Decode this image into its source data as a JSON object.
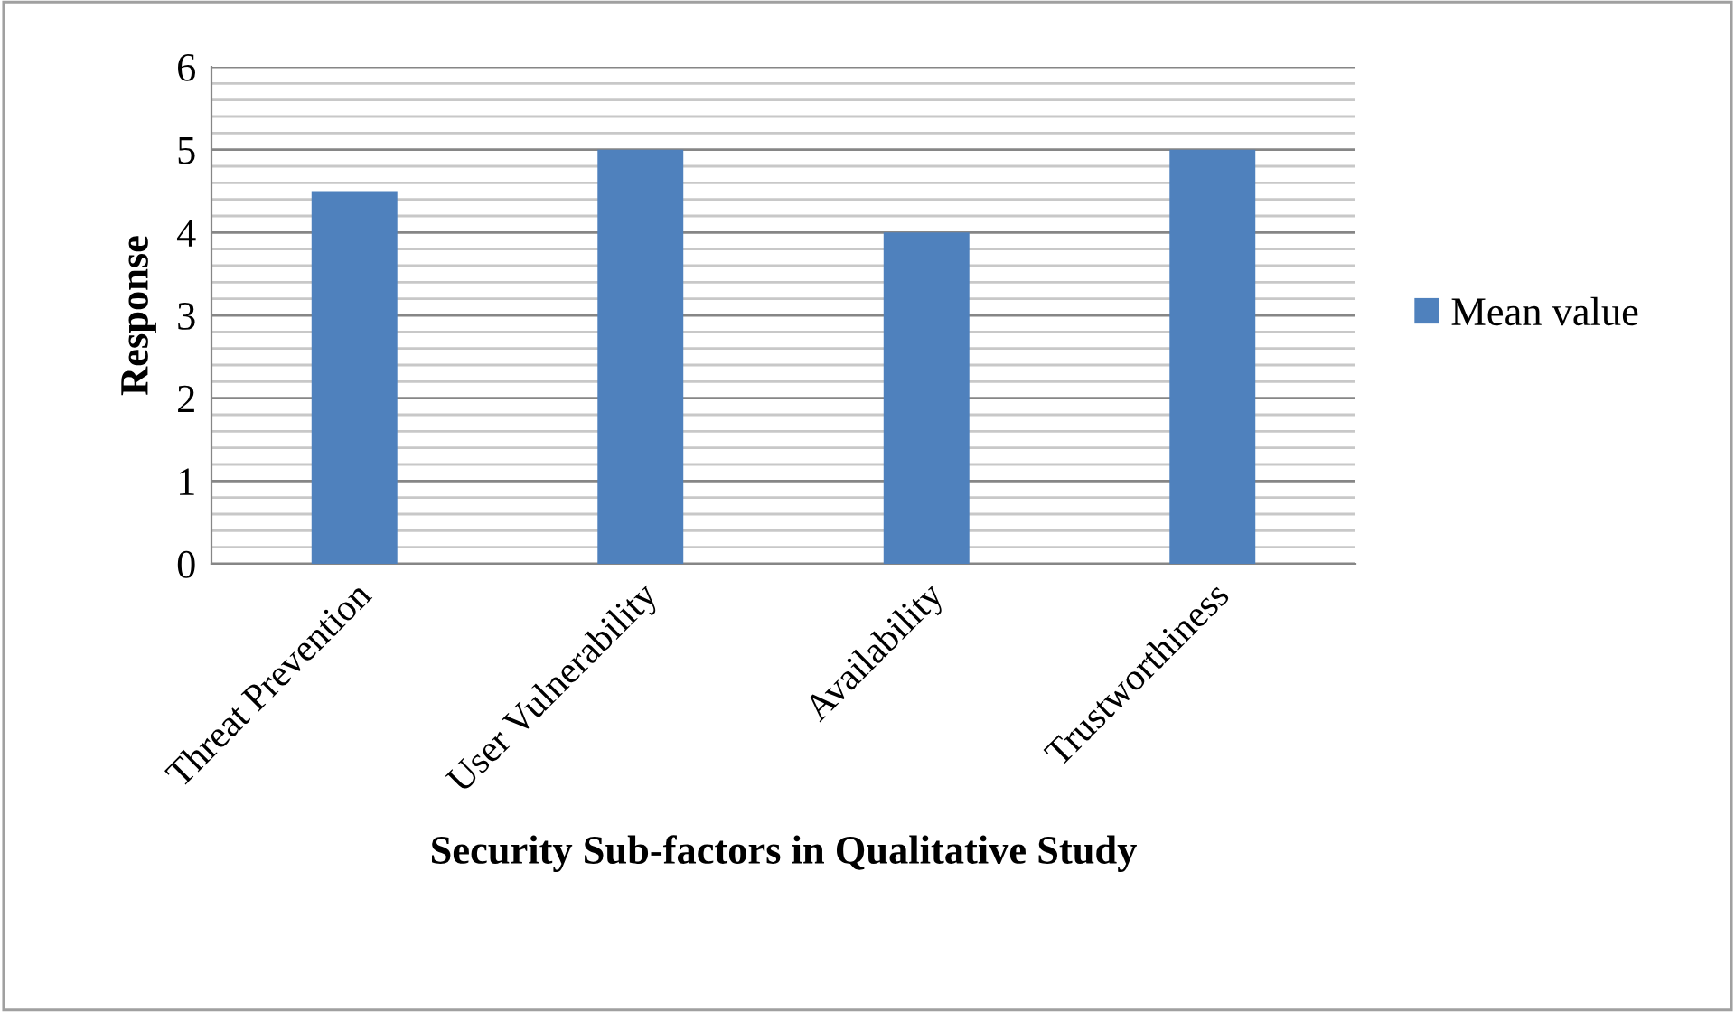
{
  "chart_data": {
    "type": "bar",
    "xlabel": "Security Sub-factors in Qualitative Study",
    "ylabel": "Response",
    "categories": [
      "Threat Prevention",
      "User Vulnerability",
      "Availability",
      "Trustworthiness"
    ],
    "series": [
      {
        "name": "Mean value",
        "color": "#4f81bd",
        "values": [
          4.5,
          5,
          4,
          5
        ]
      }
    ],
    "ylim": [
      0,
      6
    ],
    "yticks": [
      0,
      1,
      2,
      3,
      4,
      5,
      6
    ],
    "grid": "y",
    "legend": "right"
  }
}
